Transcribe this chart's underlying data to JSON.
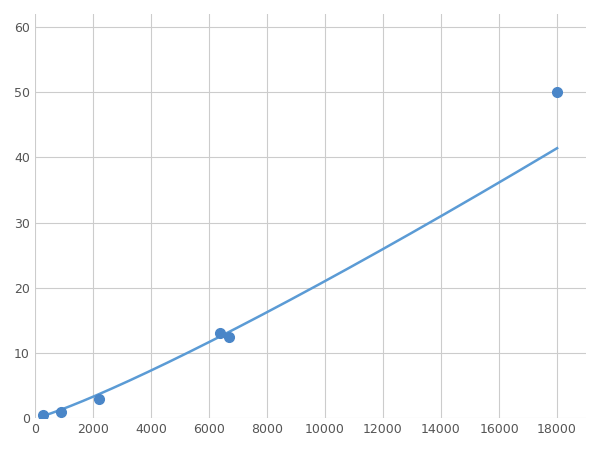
{
  "x_points": [
    300,
    900,
    2200,
    6400,
    6700,
    18000
  ],
  "y_points": [
    0.5,
    1.0,
    3.0,
    13.0,
    12.5,
    50.0
  ],
  "line_color": "#5b9bd5",
  "marker_color": "#4a86c8",
  "marker_size": 7,
  "linewidth": 1.8,
  "xlim": [
    0,
    19000
  ],
  "ylim": [
    0,
    62
  ],
  "xticks": [
    0,
    2000,
    4000,
    6000,
    8000,
    10000,
    12000,
    14000,
    16000,
    18000
  ],
  "yticks": [
    0,
    10,
    20,
    30,
    40,
    50,
    60
  ],
  "grid_color": "#cccccc",
  "bg_color": "#ffffff",
  "figsize": [
    6.0,
    4.5
  ],
  "dpi": 100
}
